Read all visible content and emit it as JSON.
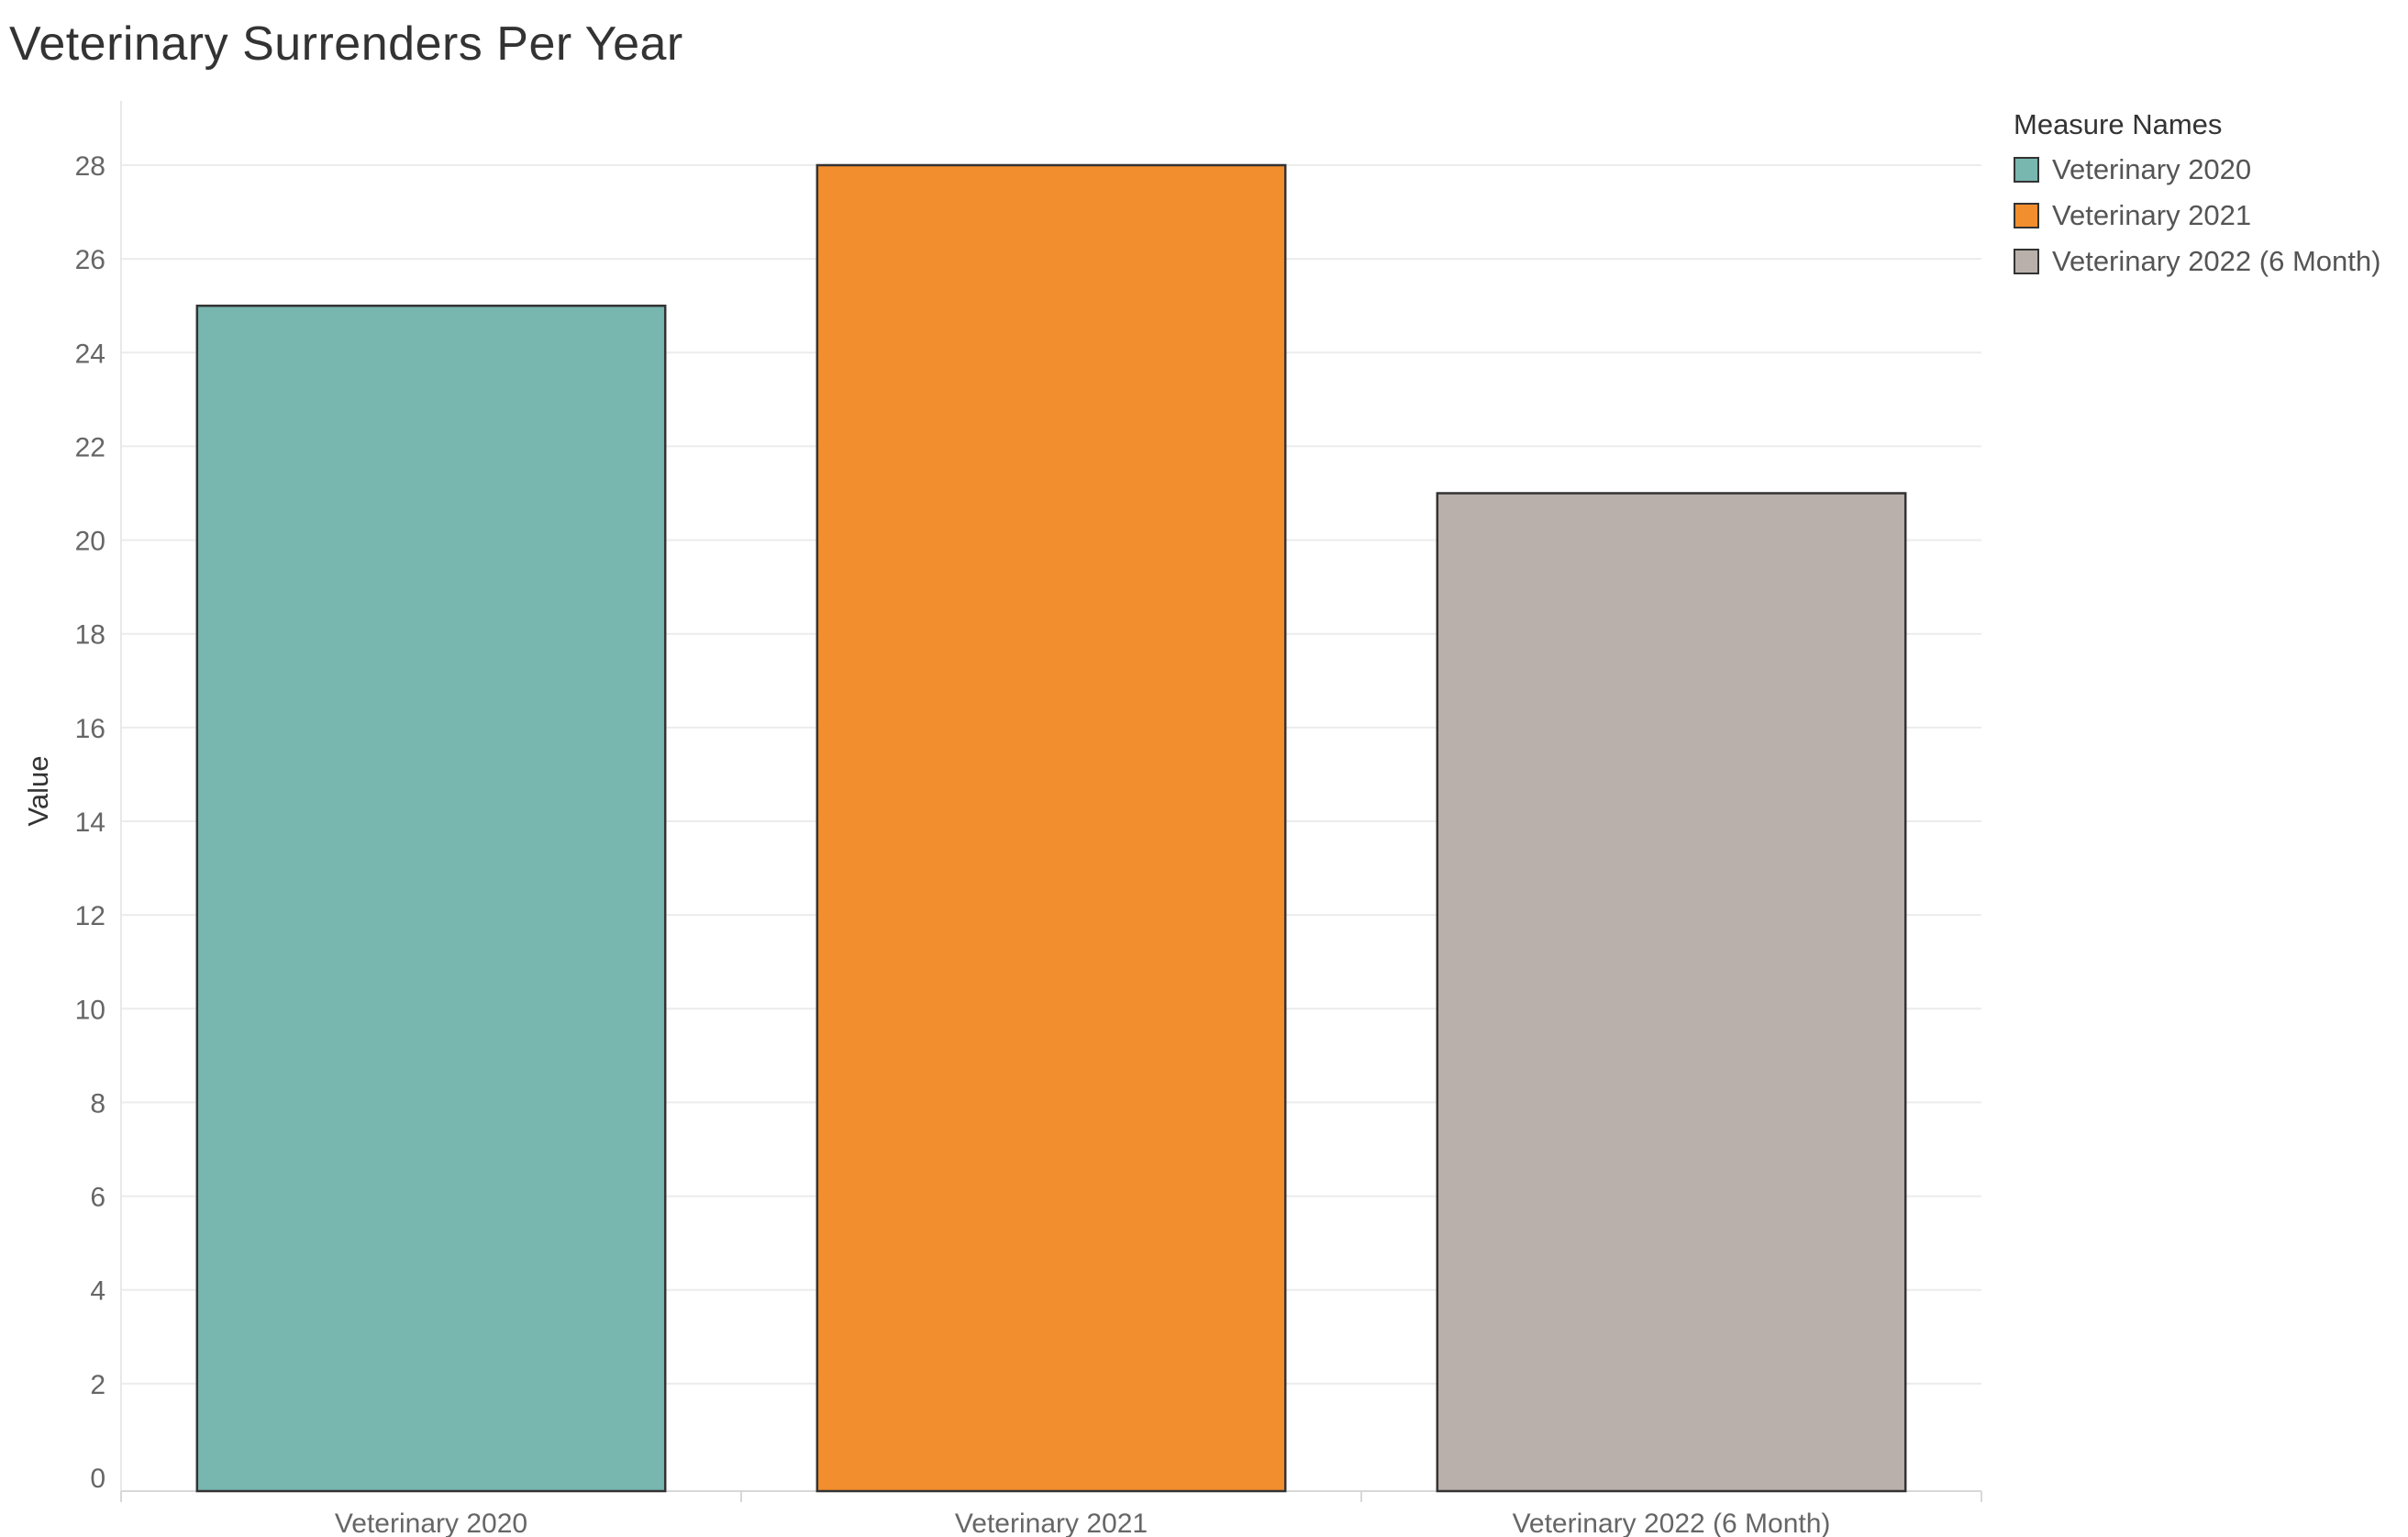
{
  "chart_data": {
    "type": "bar",
    "title": "Veterinary Surrenders Per Year",
    "ylabel": "Value",
    "xlabel": "",
    "categories": [
      "Veterinary 2020",
      "Veterinary 2021",
      "Veterinary 2022 (6 Month)"
    ],
    "values": [
      25,
      28,
      21
    ],
    "colors": [
      "#78b6b0",
      "#f28e2e",
      "#bab0ab"
    ],
    "ylim": [
      0,
      28
    ],
    "yticks": [
      0,
      2,
      4,
      6,
      8,
      10,
      12,
      14,
      16,
      18,
      20,
      22,
      24,
      26,
      28
    ],
    "grid": true,
    "legend": {
      "title": "Measure Names",
      "position": "top-right",
      "items": [
        "Veterinary 2020",
        "Veterinary 2021",
        "Veterinary 2022 (6 Month)"
      ]
    }
  }
}
